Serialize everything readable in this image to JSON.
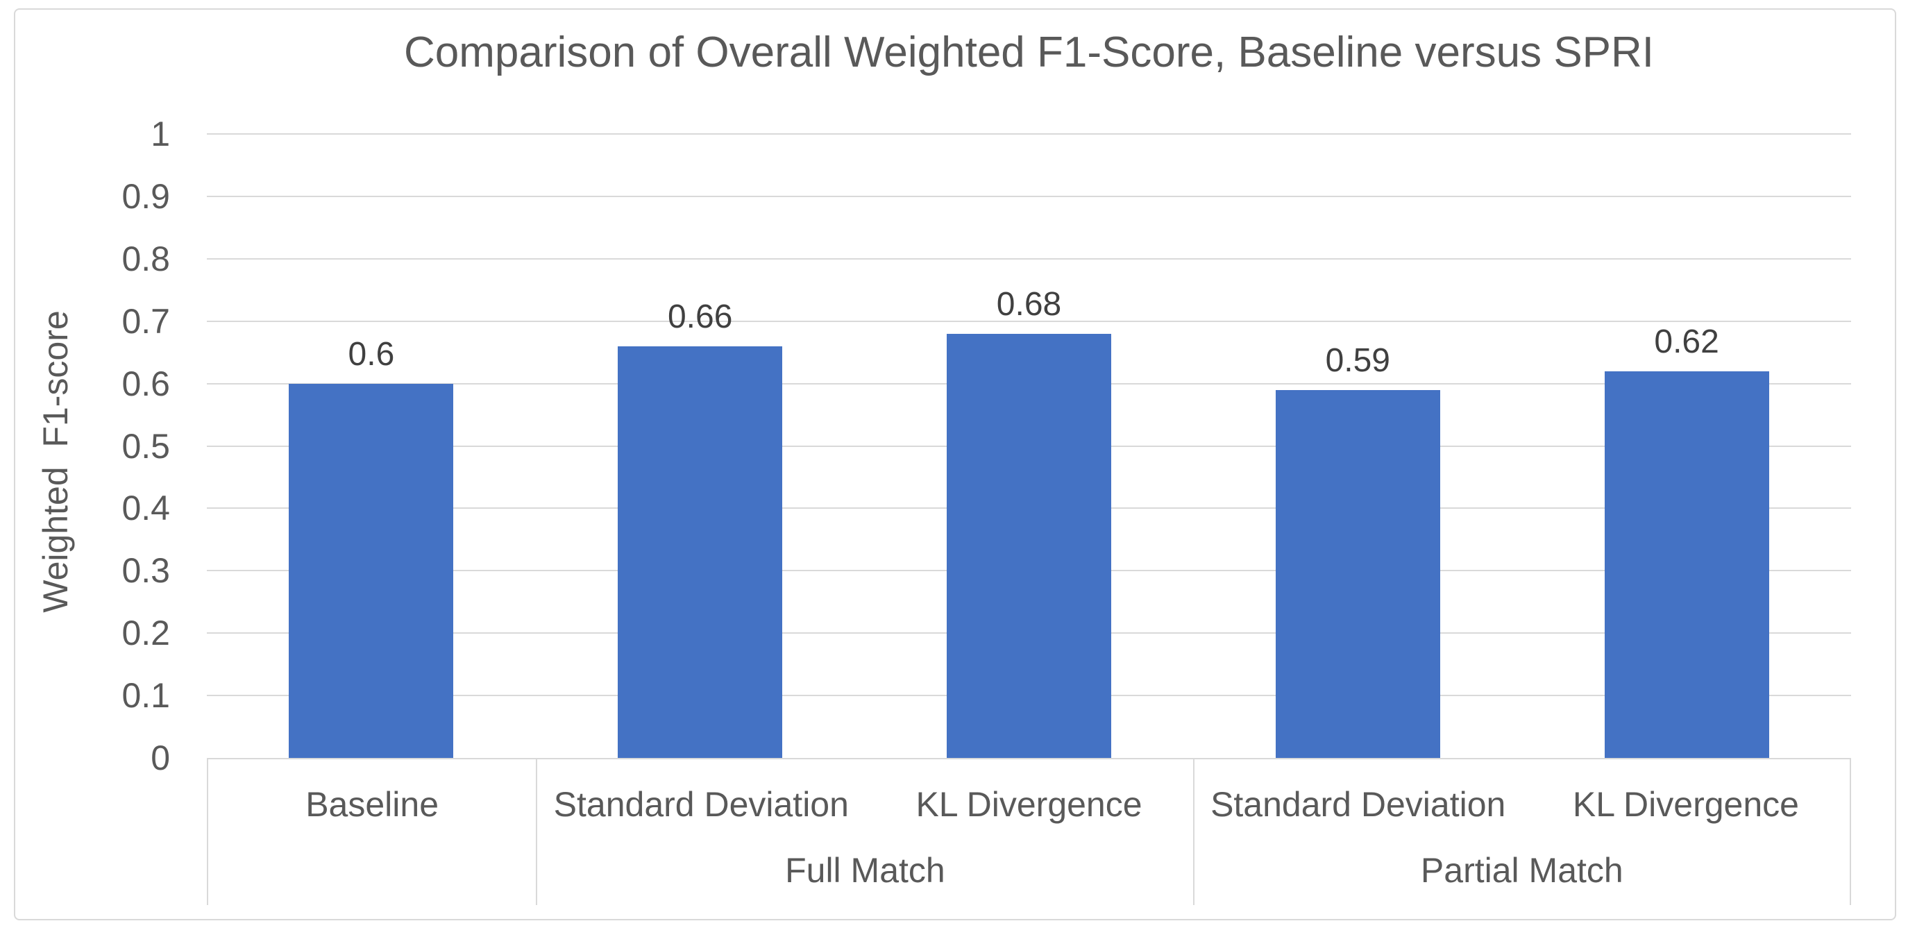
{
  "chart_data": {
    "type": "bar",
    "title": "Comparison of Overall Weighted F1-Score, Baseline versus SPRI",
    "ylabel": "Weighted  F1-score",
    "xlabel": "",
    "ylim": [
      0,
      1
    ],
    "y_ticks": [
      "1",
      "0.9",
      "0.8",
      "0.7",
      "0.6",
      "0.5",
      "0.4",
      "0.3",
      "0.2",
      "0.1",
      "0"
    ],
    "categories": [
      "Baseline",
      "Standard Deviation",
      "KL Divergence",
      "Standard Deviation",
      "KL Divergence"
    ],
    "group_labels": [
      {
        "label": "",
        "span": 1
      },
      {
        "label": "Full Match",
        "span": 2
      },
      {
        "label": "Partial Match",
        "span": 2
      }
    ],
    "values": [
      0.6,
      0.66,
      0.68,
      0.59,
      0.62
    ],
    "data_labels": [
      "0.6",
      "0.66",
      "0.68",
      "0.59",
      "0.62"
    ],
    "grid": true,
    "legend": "none",
    "colors": {
      "bar": "#4472C4",
      "gridline": "#D9D9D9",
      "axis_text": "#595959",
      "data_label_text": "#404040",
      "frame_border": "#D9D9D9",
      "background": "#FFFFFF"
    }
  }
}
